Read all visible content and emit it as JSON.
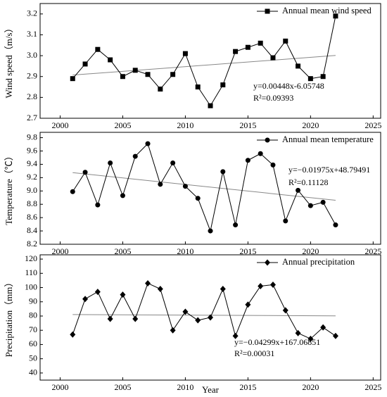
{
  "chart_data": [
    {
      "type": "line",
      "ylabel": "Wind speed（m/s）",
      "x": [
        2001,
        2002,
        2003,
        2004,
        2005,
        2006,
        2007,
        2008,
        2009,
        2010,
        2011,
        2012,
        2013,
        2014,
        2015,
        2016,
        2017,
        2018,
        2019,
        2020,
        2021,
        2022
      ],
      "series": [
        {
          "name": "Annual mean wind speed",
          "color": "#000000",
          "marker": "square",
          "values": [
            2.89,
            2.96,
            3.03,
            2.98,
            2.9,
            2.93,
            2.91,
            2.84,
            2.91,
            3.01,
            2.85,
            2.76,
            2.86,
            3.02,
            3.04,
            3.06,
            2.99,
            3.07,
            2.95,
            2.89,
            2.9,
            3.19
          ]
        }
      ],
      "trend": {
        "x": [
          2001,
          2022
        ],
        "values": [
          2.907,
          3.001
        ],
        "color": "#888888"
      },
      "annotations": [
        "y=0.00448x-6.05748",
        "R²=0.09393"
      ],
      "xlim": [
        1998.4,
        2025.6
      ],
      "xticks": [
        2000,
        2005,
        2010,
        2015,
        2020,
        2025
      ],
      "ylim": [
        2.7,
        3.25
      ],
      "yticks": [
        2.7,
        2.8,
        2.9,
        {
          "value": 3,
          "label": "3.0"
        },
        3.1,
        3.2
      ]
    },
    {
      "type": "line",
      "ylabel": "Temperature（℃）",
      "x": [
        2001,
        2002,
        2003,
        2004,
        2005,
        2006,
        2007,
        2008,
        2009,
        2010,
        2011,
        2012,
        2013,
        2014,
        2015,
        2016,
        2017,
        2018,
        2019,
        2020,
        2021,
        2022
      ],
      "series": [
        {
          "name": "Annual mean temperature",
          "color": "#000000",
          "marker": "circle",
          "values": [
            8.99,
            9.28,
            8.79,
            9.42,
            8.93,
            9.52,
            9.71,
            9.1,
            9.42,
            9.07,
            8.89,
            8.4,
            9.29,
            8.49,
            9.46,
            9.56,
            9.39,
            8.55,
            9.01,
            8.78,
            8.83,
            8.49
          ]
        }
      ],
      "trend": {
        "x": [
          2001,
          2022
        ],
        "values": [
          9.275,
          8.86
        ],
        "color": "#888888"
      },
      "annotations": [
        "y=−0.01975x+48.79491",
        "R²=0.11128"
      ],
      "xlim": [
        1998.4,
        2025.6
      ],
      "xticks": [
        2000,
        2005,
        2010,
        2015,
        2020,
        2025
      ],
      "ylim": [
        8.2,
        9.88
      ],
      "yticks": [
        8.2,
        8.4,
        8.6,
        8.8,
        {
          "value": 9,
          "label": "9.0"
        },
        9.2,
        9.4,
        9.6,
        9.8
      ]
    },
    {
      "type": "line",
      "ylabel": "Precipitation（mm）",
      "xlabel": "Year",
      "x": [
        2001,
        2002,
        2003,
        2004,
        2005,
        2006,
        2007,
        2008,
        2009,
        2010,
        2011,
        2012,
        2013,
        2014,
        2015,
        2016,
        2017,
        2018,
        2019,
        2020,
        2021,
        2022
      ],
      "series": [
        {
          "name": "Annual precipitation",
          "color": "#000000",
          "marker": "diamond",
          "values": [
            67,
            92,
            97,
            78,
            95,
            78,
            103,
            99,
            70,
            83,
            77,
            79,
            99,
            66,
            88,
            101,
            102,
            84,
            68,
            64,
            72,
            66
          ]
        }
      ],
      "trend": {
        "x": [
          2001,
          2022
        ],
        "values": [
          81.05,
          80.14
        ],
        "color": "#888888"
      },
      "annotations": [
        "y=−0.04299x+167.06851",
        "R²=0.00031"
      ],
      "xlim": [
        1998.4,
        2025.6
      ],
      "xticks": [
        2000,
        2005,
        2010,
        2015,
        2020,
        2025
      ],
      "ylim": [
        35,
        123
      ],
      "yticks": [
        40,
        50,
        60,
        70,
        80,
        90,
        100,
        110,
        120
      ]
    }
  ]
}
